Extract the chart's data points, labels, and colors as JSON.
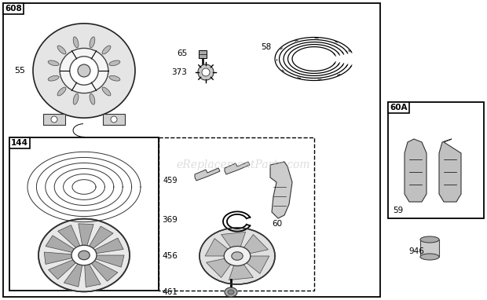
{
  "bg_color": "#ffffff",
  "watermark": "eReplacementParts.com",
  "watermark_color": "#c8c8c8",
  "watermark_alpha": 0.6,
  "fig_w": 6.2,
  "fig_h": 3.82,
  "dpi": 100
}
